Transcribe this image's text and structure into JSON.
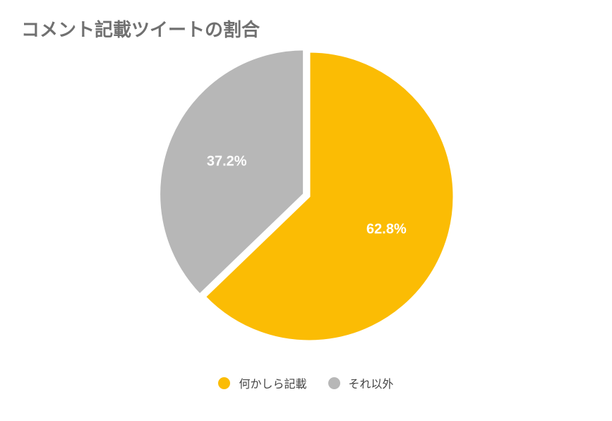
{
  "chart_data": {
    "type": "pie",
    "title": "コメント記載ツイートの割合",
    "categories": [
      "何かしら記載",
      "それ以外"
    ],
    "values": [
      62.8,
      37.2
    ],
    "data_labels": [
      "62.8%",
      "37.2%"
    ],
    "colors": [
      "#FBBC04",
      "#B7B7B7"
    ],
    "legend_position": "bottom",
    "exploded_slice": 1
  }
}
